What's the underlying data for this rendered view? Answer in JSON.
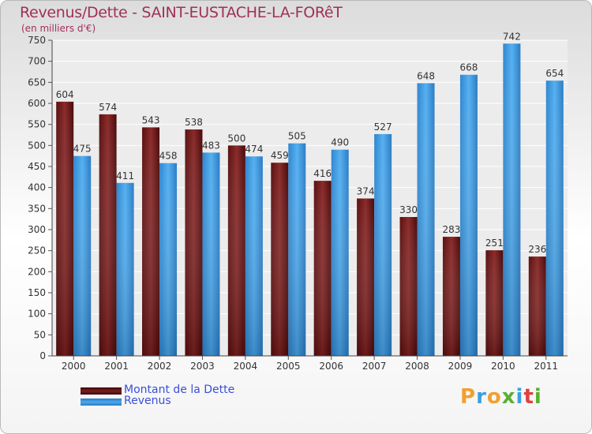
{
  "title": "Revenus/Dette - SAINT-EUSTACHE-LA-FORêT",
  "subtitle": "(en milliers d'€)",
  "brand": "Proxiti",
  "colors": {
    "dette": "#7a1f1f",
    "revenus": "#3d97e0",
    "title": "#a0305a",
    "legend": "#3b4fd8"
  },
  "chart_data": {
    "type": "bar",
    "categories": [
      "2000",
      "2001",
      "2002",
      "2003",
      "2004",
      "2005",
      "2006",
      "2007",
      "2008",
      "2009",
      "2010",
      "2011"
    ],
    "series": [
      {
        "name": "Montant de la Dette",
        "values": [
          604,
          574,
          543,
          538,
          500,
          459,
          416,
          374,
          330,
          283,
          251,
          236
        ]
      },
      {
        "name": "Revenus",
        "values": [
          475,
          411,
          458,
          483,
          474,
          505,
          490,
          527,
          648,
          668,
          742,
          654
        ]
      }
    ],
    "ylim": [
      0,
      750
    ],
    "yticks": [
      0,
      50,
      100,
      150,
      200,
      250,
      300,
      350,
      400,
      450,
      500,
      550,
      600,
      650,
      700,
      750
    ],
    "grid": true,
    "legend": "bottom-left"
  }
}
